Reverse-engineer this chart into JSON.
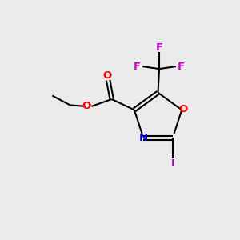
{
  "background_color": "#ebebeb",
  "bond_color": "#000000",
  "bond_width": 1.5,
  "O_color": "#ff0000",
  "N_color": "#0000cc",
  "F_color": "#cc00cc",
  "I_color": "#9900aa",
  "figsize": [
    3.0,
    3.0
  ],
  "dpi": 100,
  "xlim": [
    0,
    10
  ],
  "ylim": [
    0,
    10
  ],
  "font_size": 9.5
}
